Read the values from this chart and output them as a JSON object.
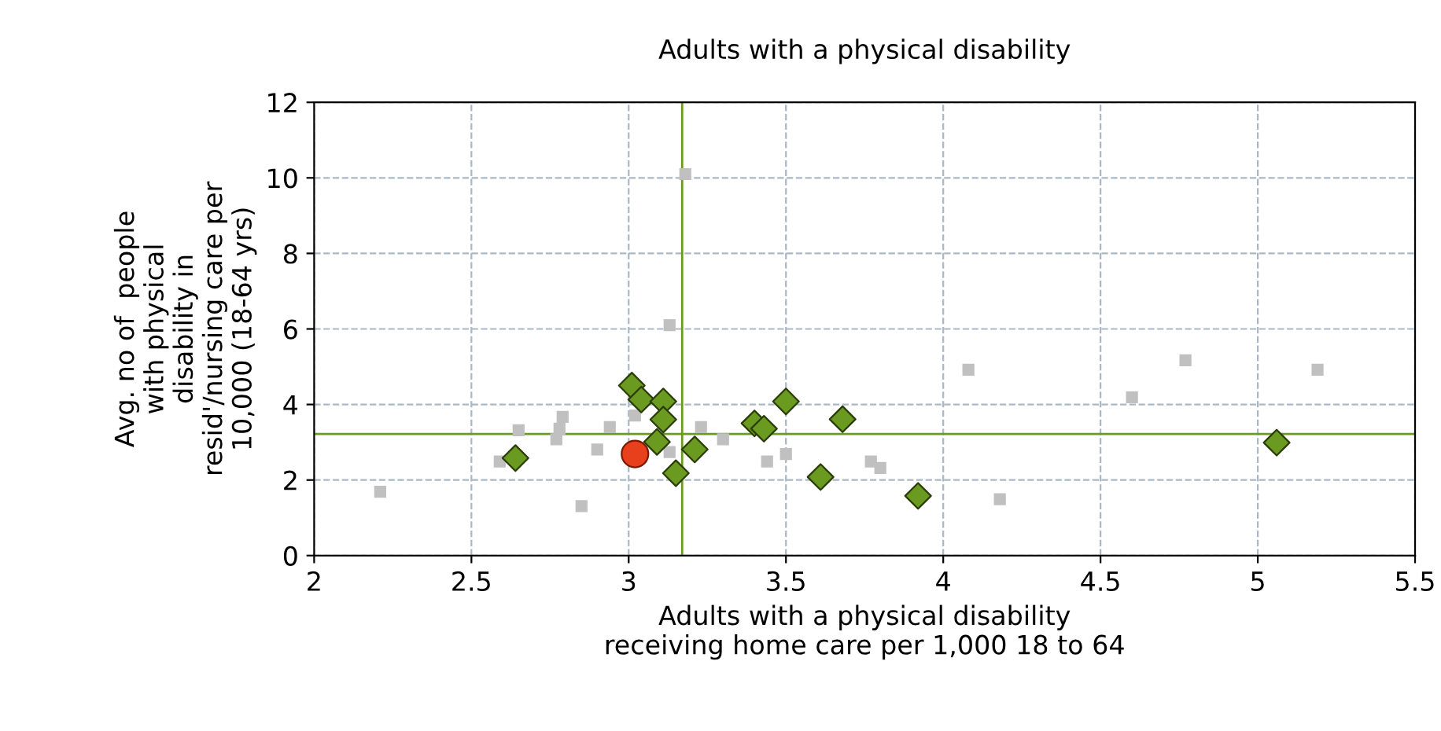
{
  "chart_data": {
    "type": "scatter",
    "title": "Adults with a physical disability",
    "xlabel": "Adults with a physical disability\nreceiving home care per 1,000 18 to 64",
    "ylabel": "Avg. no of  people\nwith physical\ndisability in\nresid'/nursing care per\n10,000 (18-64 yrs)",
    "xlim": [
      2,
      5.5
    ],
    "xticks": [
      2,
      2.5,
      3,
      3.5,
      4,
      4.5,
      5,
      5.5
    ],
    "ylim": [
      0,
      12
    ],
    "yticks": [
      0,
      2,
      4,
      6,
      8,
      10,
      12
    ],
    "grid": true,
    "series": [
      {
        "color": "#c0c0c0",
        "marker": "square",
        "x": [
          2.21,
          2.59,
          2.65,
          2.79,
          2.78,
          2.77,
          2.85,
          2.9,
          2.94,
          3.02,
          3.13,
          3.18,
          3.13,
          3.23,
          3.3,
          3.44,
          3.5,
          3.77,
          3.8,
          4.08,
          4.18,
          4.6,
          4.77,
          5.19
        ],
        "values": [
          1.69,
          2.49,
          3.32,
          3.67,
          3.36,
          3.08,
          1.31,
          2.81,
          3.4,
          3.71,
          6.1,
          10.1,
          2.74,
          3.4,
          3.08,
          2.49,
          2.69,
          2.49,
          2.32,
          4.92,
          1.49,
          4.19,
          5.17,
          4.92
        ]
      },
      {
        "color": "#6a9a1f",
        "marker": "diamond",
        "x": [
          2.64,
          3.01,
          3.04,
          3.11,
          3.11,
          3.09,
          3.15,
          3.21,
          3.4,
          3.43,
          3.5,
          3.61,
          3.68,
          3.92,
          5.06
        ],
        "values": [
          2.58,
          4.5,
          4.13,
          4.08,
          3.6,
          3.01,
          2.18,
          2.81,
          3.5,
          3.36,
          4.08,
          2.08,
          3.61,
          1.58,
          2.99
        ]
      },
      {
        "color": "#e8401c",
        "marker": "circle",
        "x": [
          3.02
        ],
        "values": [
          2.69
        ]
      }
    ],
    "ref_lines": [
      {
        "axis": "x",
        "value": 3.17,
        "color": "#6a9a1f"
      },
      {
        "axis": "y",
        "value": 3.22,
        "color": "#6a9a1f"
      }
    ]
  }
}
